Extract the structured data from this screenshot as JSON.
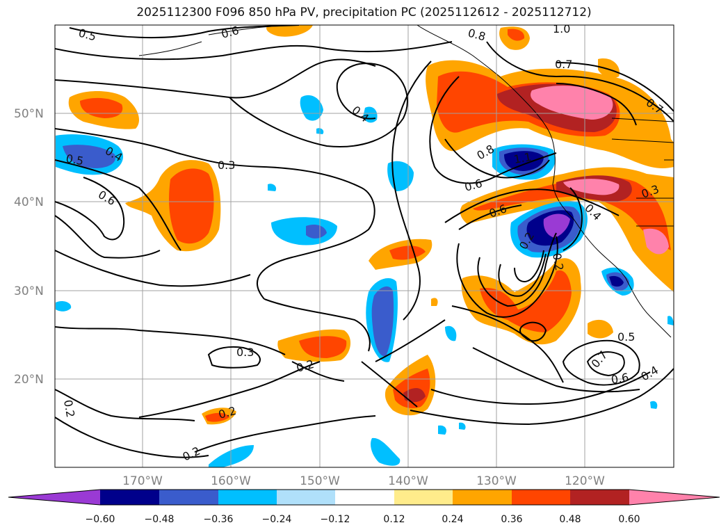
{
  "title": "2025112300 F096 850 hPa PV, precipitation PC (2025112612 - 2025112712)",
  "lat_labels": [
    "50°N",
    "40°N",
    "30°N",
    "20°N"
  ],
  "lon_labels": [
    "170°W",
    "160°W",
    "150°W",
    "140°W",
    "130°W",
    "120°W"
  ],
  "colorbar": {
    "colors": [
      "#9a3ad4",
      "#00008b",
      "#3a5ccc",
      "#00bfff",
      "#b0e0fa",
      "#ffffff",
      "#ffec8b",
      "#ffa500",
      "#ff4500",
      "#b22222",
      "#ff82ab"
    ],
    "ticks": [
      "−0.60",
      "−0.48",
      "−0.36",
      "−0.24",
      "−0.12",
      "0.12",
      "0.24",
      "0.36",
      "0.48",
      "0.60"
    ]
  },
  "contour_labels": [
    "0.5",
    "0.6",
    "0.8",
    "1.0",
    "0.7",
    "0.4",
    "0.5",
    "0.4",
    "0.6",
    "0.3",
    "0.8",
    "1.1",
    "0.6",
    "0.6",
    "0.4",
    "0.3",
    "0.2",
    "0.2",
    "0.5",
    "0.7",
    "0.6",
    "0.4",
    "0.3",
    "0.2",
    "0.2",
    "0.2",
    "0.2",
    "0.7"
  ]
}
